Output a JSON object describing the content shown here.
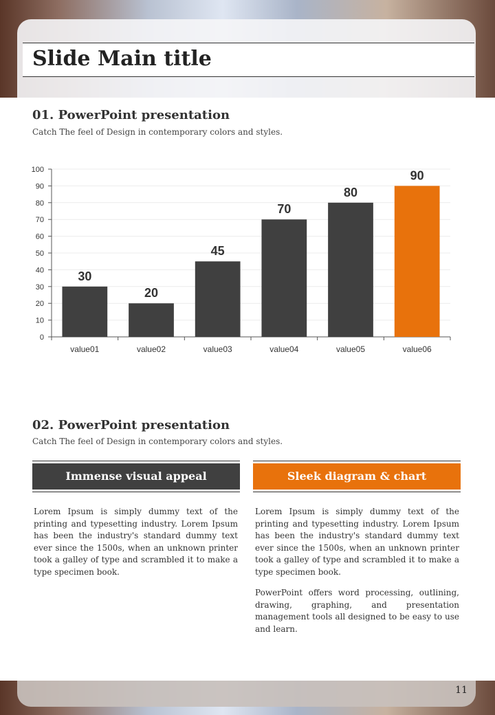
{
  "header": {
    "title": "Slide Main title"
  },
  "section1": {
    "heading": "01. PowerPoint presentation",
    "subtitle": "Catch The feel of Design in contemporary colors and styles."
  },
  "chart_data": {
    "type": "bar",
    "categories": [
      "value01",
      "value02",
      "value03",
      "value04",
      "value05",
      "value06"
    ],
    "values": [
      30,
      20,
      45,
      70,
      80,
      90
    ],
    "colors": [
      "#404040",
      "#404040",
      "#404040",
      "#404040",
      "#404040",
      "#e8720c"
    ],
    "ylim": [
      0,
      100
    ],
    "yticks": [
      0,
      10,
      20,
      30,
      40,
      50,
      60,
      70,
      80,
      90,
      100
    ],
    "grid": true
  },
  "section2": {
    "heading": "02. PowerPoint presentation",
    "subtitle": "Catch The feel of Design in contemporary colors and styles.",
    "columns": [
      {
        "heading": "Immense visual appeal",
        "color": "#404040",
        "paragraphs": [
          "Lorem Ipsum is simply dummy text of the printing and typesetting industry. Lorem Ipsum has been the industry's standard dummy text ever since the 1500s, when an unknown printer took a galley of type and scrambled it to make a type specimen book."
        ]
      },
      {
        "heading": "Sleek diagram & chart",
        "color": "#e8720c",
        "paragraphs": [
          "Lorem Ipsum is simply dummy text of the printing and typesetting industry. Lorem Ipsum has been the industry's standard dummy text ever since the 1500s, when an unknown printer took a galley of type and scrambled it to make a type specimen book.",
          "PowerPoint offers word processing, outlining, drawing, graphing, and presentation management tools all designed to be easy to use and learn."
        ]
      }
    ]
  },
  "page_number": 11
}
